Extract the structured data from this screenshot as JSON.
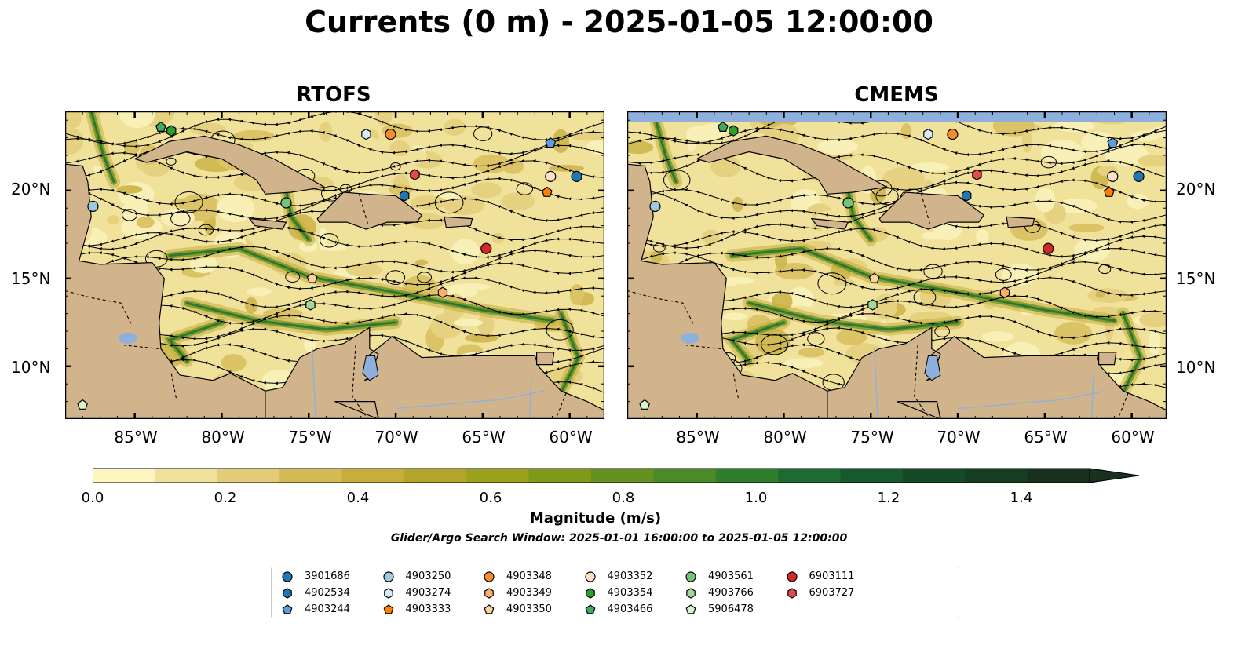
{
  "title": "Currents (0 m) - 2025-01-05 12:00:00",
  "panels": [
    {
      "name": "RTOFS"
    },
    {
      "name": "CMEMS"
    }
  ],
  "lat_labels": [
    "20°N",
    "15°N",
    "10°N"
  ],
  "lon_labels": [
    "85°W",
    "80°W",
    "75°W",
    "70°W",
    "65°W",
    "60°W"
  ],
  "map_extent": {
    "lon": [
      -89,
      -58
    ],
    "lat": [
      7,
      24.5
    ]
  },
  "colorbar": {
    "label": "Magnitude (m/s)",
    "ticks": [
      "0.0",
      "0.2",
      "0.4",
      "0.6",
      "0.8",
      "1.0",
      "1.2",
      "1.4"
    ],
    "range": [
      0,
      1.5
    ],
    "extend": "max",
    "colors": [
      "#fdf6c1",
      "#f0e19b",
      "#e2cc78",
      "#d4ba55",
      "#c7ae3c",
      "#b3a42b",
      "#9aa11c",
      "#7f9a1a",
      "#649120",
      "#4b8a26",
      "#2f7d2d",
      "#1d6b31",
      "#15592c",
      "#144a27",
      "#163d22",
      "#18301c"
    ]
  },
  "subtitle": "Glider/Argo Search Window: 2025-01-01 16:00:00 to 2025-01-05 12:00:00",
  "colors": {
    "land": "#d2b48c",
    "water_feature": "#8fb0dd",
    "coast": "#000000"
  },
  "legend": [
    {
      "id": "3901686",
      "color": "#1f78b4",
      "shape": "circle"
    },
    {
      "id": "4902534",
      "color": "#1f78b4",
      "shape": "hexagon"
    },
    {
      "id": "4903244",
      "color": "#5aa0e0",
      "shape": "pentagon"
    },
    {
      "id": "4903250",
      "color": "#9ecae1",
      "shape": "circle"
    },
    {
      "id": "4903274",
      "color": "#d6ecfa",
      "shape": "hexagon"
    },
    {
      "id": "4903333",
      "color": "#ff7f00",
      "shape": "pentagon"
    },
    {
      "id": "4903348",
      "color": "#f28e2b",
      "shape": "circle"
    },
    {
      "id": "4903349",
      "color": "#fdae6b",
      "shape": "hexagon"
    },
    {
      "id": "4903350",
      "color": "#fdd0a2",
      "shape": "pentagon"
    },
    {
      "id": "4903352",
      "color": "#fde0c5",
      "shape": "circle"
    },
    {
      "id": "4903354",
      "color": "#2ca02c",
      "shape": "hexagon"
    },
    {
      "id": "4903466",
      "color": "#41ab5d",
      "shape": "pentagon"
    },
    {
      "id": "4903561",
      "color": "#74c476",
      "shape": "circle"
    },
    {
      "id": "4903766",
      "color": "#a1d99b",
      "shape": "hexagon"
    },
    {
      "id": "5906478",
      "color": "#d9f2d0",
      "shape": "pentagon"
    },
    {
      "id": "6903111",
      "color": "#d62728",
      "shape": "circle"
    },
    {
      "id": "6903727",
      "color": "#e34a4a",
      "shape": "hexagon"
    }
  ],
  "floats": [
    {
      "id": "3901686",
      "lon": -59.6,
      "lat": 20.8
    },
    {
      "id": "4902534",
      "lon": -69.5,
      "lat": 19.7
    },
    {
      "id": "4903244",
      "lon": -61.1,
      "lat": 22.7
    },
    {
      "id": "4903250",
      "lon": -87.4,
      "lat": 19.1
    },
    {
      "id": "4903274",
      "lon": -71.7,
      "lat": 23.2
    },
    {
      "id": "4903333",
      "lon": -61.3,
      "lat": 19.9
    },
    {
      "id": "4903348",
      "lon": -70.3,
      "lat": 23.2
    },
    {
      "id": "4903349",
      "lon": -67.3,
      "lat": 14.2
    },
    {
      "id": "4903350",
      "lon": -74.8,
      "lat": 15.0
    },
    {
      "id": "4903352",
      "lon": -61.1,
      "lat": 20.8
    },
    {
      "id": "4903354",
      "lon": -82.9,
      "lat": 23.4
    },
    {
      "id": "4903466",
      "lon": -83.5,
      "lat": 23.6
    },
    {
      "id": "4903561",
      "lon": -76.3,
      "lat": 19.3
    },
    {
      "id": "4903766",
      "lon": -74.9,
      "lat": 13.5
    },
    {
      "id": "5906478",
      "lon": -88.0,
      "lat": 7.8
    },
    {
      "id": "6903111",
      "lon": -64.8,
      "lat": 16.7
    },
    {
      "id": "6903727",
      "lon": -68.9,
      "lat": 20.9
    }
  ]
}
